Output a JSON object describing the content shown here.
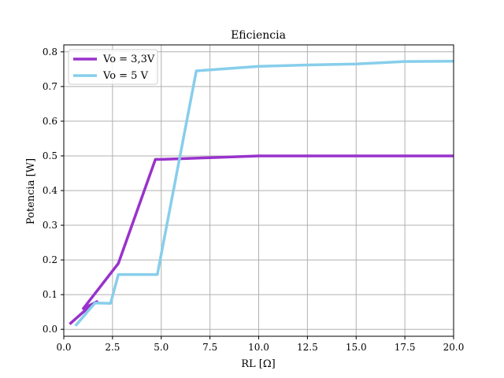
{
  "chart_data": {
    "type": "line",
    "title": "Eficiencia",
    "xlabel": "RL [Ω]",
    "ylabel": "Potencia [W]",
    "xlim": [
      0,
      20
    ],
    "ylim": [
      -0.02,
      0.82
    ],
    "xticks": [
      0.0,
      2.5,
      5.0,
      7.5,
      10.0,
      12.5,
      15.0,
      17.5,
      20.0
    ],
    "xtick_labels": [
      "0.0",
      "2.5",
      "5.0",
      "7.5",
      "10.0",
      "12.5",
      "15.0",
      "17.5",
      "20.0"
    ],
    "yticks": [
      0.0,
      0.1,
      0.2,
      0.3,
      0.4,
      0.5,
      0.6,
      0.7,
      0.8
    ],
    "ytick_labels": [
      "0.0",
      "0.1",
      "0.2",
      "0.3",
      "0.4",
      "0.5",
      "0.6",
      "0.7",
      "0.8"
    ],
    "grid": true,
    "legend_position": "upper-left",
    "series": [
      {
        "name": "Vo = 3,3V",
        "color": "#9932CC",
        "x": [
          0.3,
          1.0,
          1.7,
          1.0,
          2.8,
          4.7,
          5.0,
          7.5,
          10.0,
          12.5,
          15.0,
          17.5,
          20.0
        ],
        "y": [
          0.015,
          0.05,
          0.08,
          0.06,
          0.19,
          0.49,
          0.49,
          0.495,
          0.5,
          0.5,
          0.5,
          0.5,
          0.5
        ]
      },
      {
        "name": "Vo = 5 V",
        "color": "#87CEEB",
        "x": [
          0.6,
          1.6,
          2.4,
          2.8,
          4.8,
          6.8,
          10.0,
          12.5,
          15.0,
          17.5,
          20.0
        ],
        "y": [
          0.01,
          0.076,
          0.075,
          0.158,
          0.158,
          0.745,
          0.758,
          0.762,
          0.765,
          0.772,
          0.773
        ]
      }
    ]
  }
}
